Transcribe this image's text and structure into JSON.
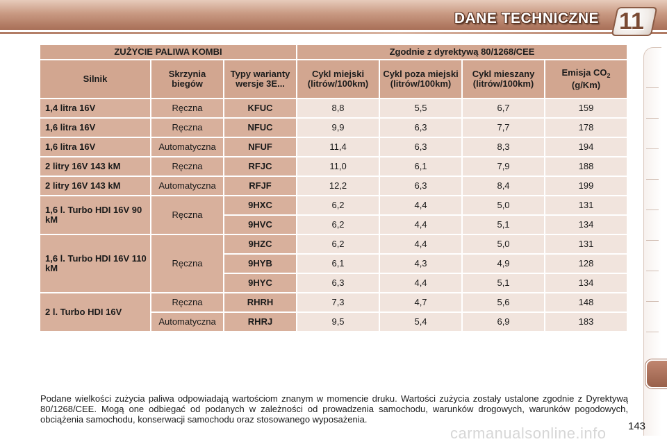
{
  "header": {
    "title": "DANE TECHNICZNE",
    "chapter": "11"
  },
  "table": {
    "group_left": "ZUŻYCIE PALIWA KOMBI",
    "group_right": "Zgodnie z dyrektywą 80/1268/CEE",
    "columns": {
      "engine": "Silnik",
      "gearbox": "Skrzynia biegów",
      "type": "Typy warianty wersje 3E...",
      "urban": "Cykl miejski (litrów/100km)",
      "extra_urban": "Cykl poza miejski (litrów/100km)",
      "combined": "Cykl mieszany (litrów/100km)",
      "co2_main": "Emisja CO",
      "co2_sub": "2",
      "co2_unit": "(g/Km)"
    },
    "rows": [
      {
        "engine": "1,4 litra 16V",
        "gearbox": "Ręczna",
        "type": "KFUC",
        "urban": "8,8",
        "extra": "5,5",
        "mixed": "6,7",
        "co2": "159"
      },
      {
        "engine": "1,6 litra 16V",
        "gearbox": "Ręczna",
        "type": "NFUC",
        "urban": "9,9",
        "extra": "6,3",
        "mixed": "7,7",
        "co2": "178"
      },
      {
        "engine": "1,6 litra 16V",
        "gearbox": "Automatyczna",
        "type": "NFUF",
        "urban": "11,4",
        "extra": "6,3",
        "mixed": "8,3",
        "co2": "194"
      },
      {
        "engine": "2 litry 16V 143 kM",
        "gearbox": "Ręczna",
        "type": "RFJC",
        "urban": "11,0",
        "extra": "6,1",
        "mixed": "7,9",
        "co2": "188"
      },
      {
        "engine": "2 litry 16V 143 kM",
        "gearbox": "Automatyczna",
        "type": "RFJF",
        "urban": "12,2",
        "extra": "6,3",
        "mixed": "8,4",
        "co2": "199"
      },
      {
        "engine": "1,6 l. Turbo HDI 16V 90 kM",
        "gearbox": "Ręczna",
        "type": "9HXC",
        "urban": "6,2",
        "extra": "4,4",
        "mixed": "5,0",
        "co2": "131"
      },
      {
        "engine": "",
        "gearbox": "",
        "type": "9HVC",
        "urban": "6,2",
        "extra": "4,4",
        "mixed": "5,1",
        "co2": "134"
      },
      {
        "engine": "1,6 l. Turbo HDI 16V 110 kM",
        "gearbox": "Ręczna",
        "type": "9HZC",
        "urban": "6,2",
        "extra": "4,4",
        "mixed": "5,0",
        "co2": "131"
      },
      {
        "engine": "",
        "gearbox": "",
        "type": "9HYB",
        "urban": "6,1",
        "extra": "4,3",
        "mixed": "4,9",
        "co2": "128"
      },
      {
        "engine": "",
        "gearbox": "",
        "type": "9HYC",
        "urban": "6,3",
        "extra": "4,4",
        "mixed": "5,1",
        "co2": "134"
      },
      {
        "engine": "2 l. Turbo HDI 16V",
        "gearbox": "Ręczna",
        "type": "RHRH",
        "urban": "7,3",
        "extra": "4,7",
        "mixed": "5,6",
        "co2": "148"
      },
      {
        "engine": "",
        "gearbox": "Automatyczna",
        "type": "RHRJ",
        "urban": "9,5",
        "extra": "5,4",
        "mixed": "6,9",
        "co2": "183"
      }
    ]
  },
  "footnote": "Podane wielkości zużycia paliwa odpowiadają wartościom znanym w momencie druku. Wartości zużycia zostały ustalone zgodnie z Dyrektywą 80/1268/CEE. Mogą one odbiegać od podanych w zależności od prowadzenia samochodu, warunków drogowych, warunków pogodowych, obciążenia samochodu, konserwacji samochodu oraz stosowanego wyposażenia.",
  "page_number": "143",
  "watermark": "carmanualsonline.info",
  "colors": {
    "header_gradient_top": "#e7cbbb",
    "header_gradient_bottom": "#a86f57",
    "label_cell": "#d8b09c",
    "value_cell": "#f1e4dd",
    "side_tab_active": "#b07a63"
  }
}
